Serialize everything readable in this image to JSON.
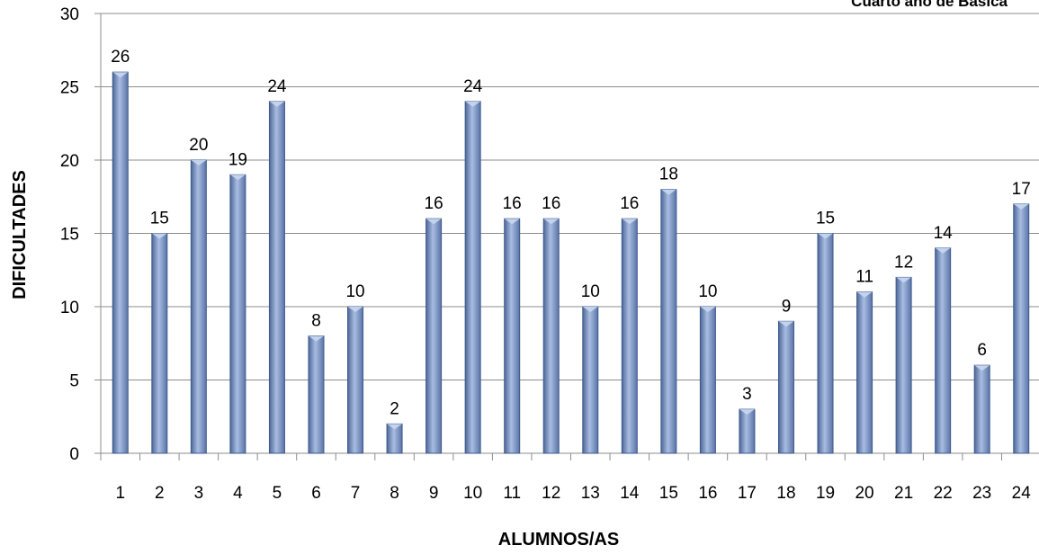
{
  "chart_data": {
    "type": "bar",
    "title": "Cuarto año de Básica",
    "xlabel": "ALUMNOS/AS",
    "ylabel": "DIFICULTADES",
    "categories": [
      "1",
      "2",
      "3",
      "4",
      "5",
      "6",
      "7",
      "8",
      "9",
      "10",
      "11",
      "12",
      "13",
      "14",
      "15",
      "16",
      "17",
      "18",
      "19",
      "20",
      "21",
      "22",
      "23",
      "24"
    ],
    "values": [
      26,
      15,
      20,
      19,
      24,
      8,
      10,
      2,
      16,
      24,
      16,
      16,
      10,
      16,
      18,
      10,
      3,
      9,
      15,
      11,
      12,
      14,
      6,
      17
    ],
    "ylim": [
      0,
      30
    ],
    "yticks": [
      0,
      5,
      10,
      15,
      20,
      25,
      30
    ],
    "grid": true,
    "bar_color": "#7f98c8",
    "bar_edge_color": "#3e5a8e"
  }
}
